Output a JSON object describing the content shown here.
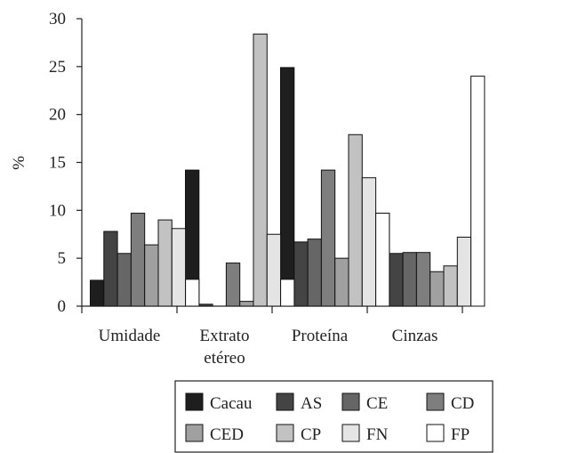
{
  "chart_data": {
    "type": "bar",
    "ylabel": "%",
    "ylim": [
      0,
      30
    ],
    "yticks": [
      0,
      5,
      10,
      15,
      20,
      25,
      30
    ],
    "categories": [
      "Umidade",
      "Extrato etéreo",
      "Proteína",
      "Cinzas"
    ],
    "category_lines": [
      [
        "Umidade"
      ],
      [
        "Extrato",
        "etéreo"
      ],
      [
        "Proteína"
      ],
      [
        "Cinzas"
      ]
    ],
    "legend_position": "bottom",
    "series": [
      {
        "name": "Cacau",
        "color": "#1e1e1e",
        "values": [
          2.7,
          14.2,
          24.9,
          9.7
        ]
      },
      {
        "name": "AS",
        "color": "#444444",
        "values": [
          7.8,
          0.2,
          6.7,
          5.5
        ]
      },
      {
        "name": "CE",
        "color": "#666666",
        "values": [
          5.5,
          0.0,
          7.0,
          5.6
        ]
      },
      {
        "name": "CD",
        "color": "#7e7e7e",
        "values": [
          9.7,
          4.5,
          14.2,
          5.6
        ]
      },
      {
        "name": "CED",
        "color": "#a0a0a0",
        "values": [
          6.4,
          0.5,
          5.0,
          3.6
        ]
      },
      {
        "name": "CP",
        "color": "#c2c2c2",
        "values": [
          9.0,
          28.4,
          17.9,
          4.2
        ]
      },
      {
        "name": "FN",
        "color": "#e4e4e4",
        "values": [
          8.1,
          7.5,
          13.4,
          7.2
        ]
      },
      {
        "name": "FP",
        "color": "#ffffff",
        "values": [
          2.8,
          2.8,
          9.7,
          24.0
        ]
      }
    ]
  }
}
